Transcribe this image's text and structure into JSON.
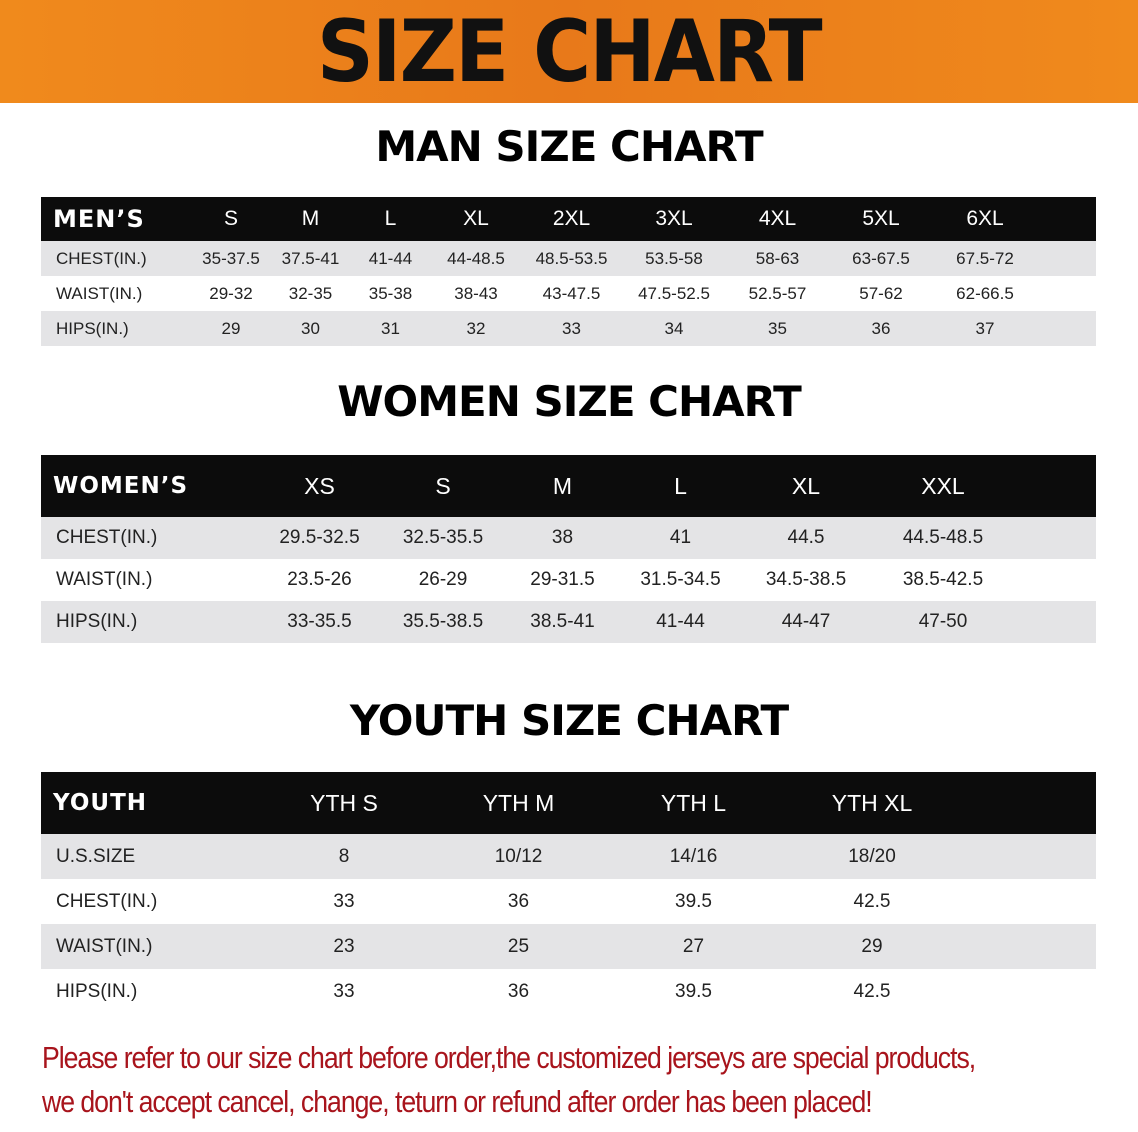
{
  "banner_title": "SIZE CHART",
  "colors": {
    "banner": "#ec821b",
    "header_row": "#0c0c0c",
    "stripe": "#e4e4e6",
    "note": "#a8141c"
  },
  "men": {
    "title": "MAN SIZE CHART",
    "headers": [
      "MEN’S",
      "S",
      "M",
      "L",
      "XL",
      "2XL",
      "3XL",
      "4XL",
      "5XL",
      "6XL",
      ""
    ],
    "rows": [
      [
        "CHEST(IN.)",
        "35-37.5",
        "37.5-41",
        "41-44",
        "44-48.5",
        "48.5-53.5",
        "53.5-58",
        "58-63",
        "63-67.5",
        "67.5-72",
        ""
      ],
      [
        "WAIST(IN.)",
        "29-32",
        "32-35",
        "35-38",
        "38-43",
        "43-47.5",
        "47.5-52.5",
        "52.5-57",
        "57-62",
        "62-66.5",
        ""
      ],
      [
        "HIPS(IN.)",
        "29",
        "30",
        "31",
        "32",
        "33",
        "34",
        "35",
        "36",
        "37",
        ""
      ]
    ]
  },
  "women": {
    "title": "WOMEN SIZE CHART",
    "headers": [
      "WOMEN’S",
      "XS",
      "S",
      "M",
      "L",
      "XL",
      "XXL",
      ""
    ],
    "rows": [
      [
        "CHEST(IN.)",
        "29.5-32.5",
        "32.5-35.5",
        "38",
        "41",
        "44.5",
        "44.5-48.5",
        ""
      ],
      [
        "WAIST(IN.)",
        "23.5-26",
        "26-29",
        "29-31.5",
        "31.5-34.5",
        "34.5-38.5",
        "38.5-42.5",
        ""
      ],
      [
        "HIPS(IN.)",
        "33-35.5",
        "35.5-38.5",
        "38.5-41",
        "41-44",
        "44-47",
        "47-50",
        ""
      ]
    ]
  },
  "youth": {
    "title": "YOUTH SIZE CHART",
    "headers": [
      "YOUTH",
      "YTH S",
      "YTH M",
      "YTH L",
      "YTH XL",
      ""
    ],
    "rows": [
      [
        "U.S.SIZE",
        "8",
        "10/12",
        "14/16",
        "18/20",
        ""
      ],
      [
        "CHEST(IN.)",
        "33",
        "36",
        "39.5",
        "42.5",
        ""
      ],
      [
        "WAIST(IN.)",
        "23",
        "25",
        "27",
        "29",
        ""
      ],
      [
        "HIPS(IN.)",
        "33",
        "36",
        "39.5",
        "42.5",
        ""
      ]
    ]
  },
  "note": {
    "line1": "Please refer to our size chart before order,the customized jerseys are special products,",
    "line2": "we don't accept cancel, change, teturn or refund after order has been placed!"
  }
}
